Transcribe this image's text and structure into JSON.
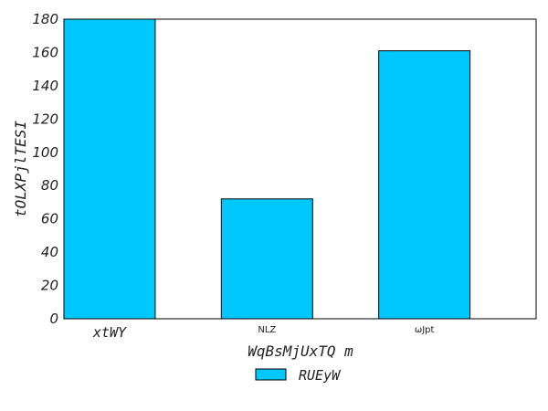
{
  "chart_data": {
    "type": "bar",
    "categories": [
      "xtWY",
      "NLZ",
      "ωJpt"
    ],
    "series": [
      {
        "name": "RUEyW",
        "values": [
          180,
          72,
          161
        ]
      }
    ],
    "xlabel": "WqBsMjUxTQ m",
    "ylabel": "tOLXPjlTESI",
    "ylim": [
      0,
      180
    ],
    "yticks": [
      0,
      20,
      40,
      60,
      80,
      100,
      120,
      140,
      160,
      180
    ],
    "grid": false,
    "legend_position": "bottom-center",
    "colors": {
      "bar": "#00c8ff",
      "edge": "#000000",
      "axis": "#000000"
    }
  }
}
